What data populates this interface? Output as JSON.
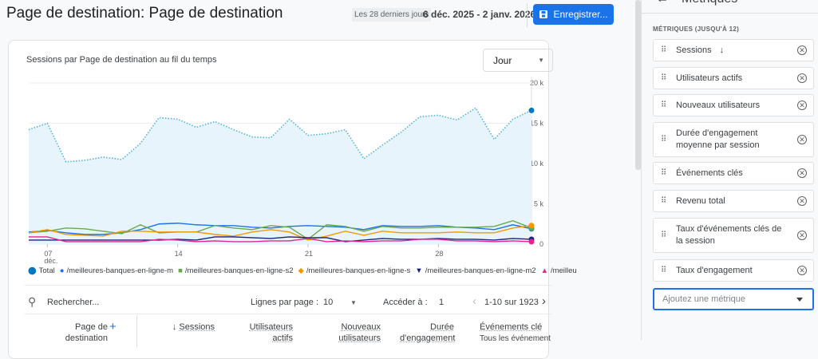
{
  "header": {
    "title": "Page de destination: Page de destination",
    "range_chip": "Les 28 derniers jours",
    "date_range": "6 déc. 2025 - 2 janv. 2026",
    "save_label": "Enregistrer..."
  },
  "card": {
    "chart_title": "Sessions par Page de destination au fil du temps",
    "granularity": "Jour"
  },
  "chart_data": {
    "type": "line",
    "title": "Sessions par Page de destination au fil du temps",
    "x": [
      "2025-12-06",
      "2025-12-07",
      "2025-12-08",
      "2025-12-09",
      "2025-12-10",
      "2025-12-11",
      "2025-12-12",
      "2025-12-13",
      "2025-12-14",
      "2025-12-15",
      "2025-12-16",
      "2025-12-17",
      "2025-12-18",
      "2025-12-19",
      "2025-12-20",
      "2025-12-21",
      "2025-12-22",
      "2025-12-23",
      "2025-12-24",
      "2025-12-25",
      "2025-12-26",
      "2025-12-27",
      "2025-12-28",
      "2025-12-29",
      "2025-12-30",
      "2025-12-31",
      "2026-01-01",
      "2026-01-02"
    ],
    "x_ticks": [
      {
        "label": "07",
        "sub": "déc."
      },
      {
        "label": "14",
        "sub": ""
      },
      {
        "label": "21",
        "sub": ""
      },
      {
        "label": "28",
        "sub": ""
      }
    ],
    "y_ticks": [
      "0",
      "5 k",
      "10 k",
      "15 k",
      "20 k"
    ],
    "ylim": [
      0,
      20000
    ],
    "grid": true,
    "legend_position": "bottom",
    "series": [
      {
        "name": "Total",
        "color": "#4fb3e0",
        "style": "dotted-area",
        "values": [
          14200,
          15000,
          10200,
          10400,
          10800,
          10500,
          12500,
          15700,
          15500,
          14500,
          15200,
          14200,
          13300,
          13200,
          15500,
          13500,
          13700,
          14200,
          10600,
          12300,
          13900,
          15800,
          16000,
          15400,
          16900,
          13000,
          15500,
          16600
        ]
      },
      {
        "name": "/meilleures-banques-en-ligne-m",
        "color": "#1a73e8",
        "values": [
          1500,
          1700,
          1400,
          1200,
          1200,
          1400,
          1800,
          2500,
          2600,
          2400,
          2300,
          2300,
          2100,
          2000,
          2200,
          2300,
          2200,
          2100,
          1800,
          2300,
          2200,
          2200,
          2300,
          2100,
          2000,
          1800,
          2400,
          1900
        ]
      },
      {
        "name": "/meilleures-banques-en-ligne-s2",
        "color": "#6aa84f",
        "values": [
          1400,
          1600,
          2000,
          1900,
          1600,
          1300,
          2400,
          1400,
          1500,
          1500,
          2300,
          2000,
          1800,
          2300,
          2100,
          600,
          2400,
          2200,
          1600,
          2200,
          2000,
          2000,
          2100,
          2100,
          2100,
          2200,
          2900,
          2000
        ]
      },
      {
        "name": "/meilleures-banques-en-ligne-s",
        "color": "#f29900",
        "values": [
          1400,
          1800,
          1200,
          1100,
          1000,
          1600,
          1600,
          1500,
          1500,
          1500,
          1200,
          1000,
          1500,
          1800,
          1500,
          500,
          1000,
          1600,
          1100,
          1600,
          1400,
          1400,
          1400,
          1500,
          1400,
          1400,
          2000,
          2300
        ]
      },
      {
        "name": "/meilleures-banques-en-ligne-m2",
        "color": "#1a237e",
        "values": [
          500,
          500,
          500,
          500,
          500,
          500,
          500,
          500,
          600,
          500,
          900,
          900,
          800,
          700,
          900,
          800,
          800,
          300,
          500,
          700,
          600,
          600,
          700,
          600,
          600,
          500,
          700,
          600
        ]
      },
      {
        "name": "/meilleu",
        "color": "#e52592",
        "values": [
          900,
          900,
          300,
          300,
          300,
          300,
          300,
          600,
          500,
          300,
          400,
          300,
          300,
          400,
          400,
          700,
          300,
          400,
          300,
          400,
          400,
          600,
          600,
          400,
          400,
          300,
          400,
          300
        ]
      }
    ]
  },
  "toolbar": {
    "search_placeholder": "Rechercher...",
    "rows_label": "Lignes par page :",
    "rows_value": "10",
    "goto_label": "Accéder à :",
    "goto_value": "1",
    "pagination": "1-10 sur 1923"
  },
  "table": {
    "columns": [
      {
        "label": "Page de destination"
      },
      {
        "label": "Sessions"
      },
      {
        "label": "Utilisateurs actifs"
      },
      {
        "label": "Nouveaux utilisateurs"
      },
      {
        "label": "Durée d'engagement"
      },
      {
        "label": "Événements clé",
        "sub": "Tous les événement"
      }
    ]
  },
  "panel": {
    "title": "Métriques",
    "section_label": "MÉTRIQUES (JUSQU'À 12)",
    "metrics": [
      "Sessions",
      "Utilisateurs actifs",
      "Nouveaux utilisateurs",
      "Durée d'engagement moyenne par session",
      "Événements clés",
      "Revenu total",
      "Taux d'événements clés de la session",
      "Taux d'engagement"
    ],
    "add_placeholder": "Ajoutez une métrique"
  }
}
